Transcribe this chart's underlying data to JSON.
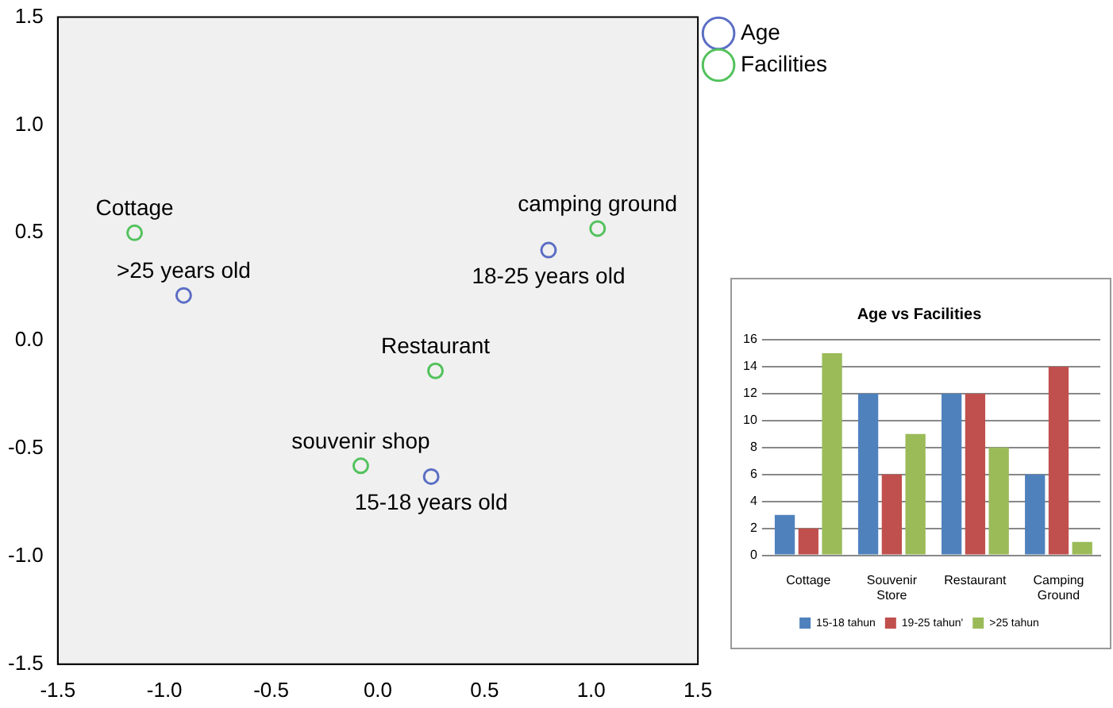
{
  "chart_data": [
    {
      "type": "scatter",
      "xlim": [
        -1.5,
        1.5
      ],
      "ylim": [
        -1.5,
        1.5
      ],
      "xticks": [
        -1.5,
        {
          "value": -1,
          "label": "-1.0"
        },
        -0.5,
        {
          "value": 0,
          "label": "0.0"
        },
        0.5,
        {
          "value": 1,
          "label": "1.0"
        },
        1.5
      ],
      "yticks": [
        -1.5,
        {
          "value": -1,
          "label": "-1.0"
        },
        -0.5,
        {
          "value": 0,
          "label": "0.0"
        },
        0.5,
        {
          "value": 1,
          "label": "1.0"
        },
        1.5
      ],
      "series": [
        {
          "name": "Age",
          "color": "#5b6ec4",
          "x": [
            -0.91,
            0.8,
            0.25
          ],
          "values": [
            0.21,
            0.42,
            -0.63
          ]
        },
        {
          "name": "Facilities",
          "color": "#52c25c",
          "x": [
            -1.14,
            1.03,
            0.27,
            -0.08
          ],
          "values": [
            0.5,
            0.52,
            -0.14,
            -0.58
          ]
        }
      ],
      "annotations": [
        {
          "text": "Cottage",
          "x": -1.14,
          "y": 0.5
        },
        {
          "text": "camping ground",
          "x": 1.03,
          "y": 0.52
        },
        {
          "text": "Restaurant",
          "x": 0.27,
          "y": -0.14
        },
        {
          "text": "souvenir shop",
          "x": -0.08,
          "y": -0.58
        },
        {
          "text": ">25 years old",
          "x": -0.91,
          "y": 0.21
        },
        {
          "text": "18-25 years old",
          "x": 0.8,
          "y": 0.42
        },
        {
          "text": "15-18 years old",
          "x": 0.25,
          "y": -0.63
        }
      ],
      "marker": "circle",
      "grid": false,
      "legend": "top right"
    },
    {
      "type": "bar",
      "title": "Age vs Facilities",
      "categories": [
        "Cottage",
        "Souvenir Store",
        "Restaurant",
        "Camping Ground"
      ],
      "series": [
        {
          "name": "15-18 tahun",
          "color": "#4f81bd",
          "values": [
            3,
            12,
            12,
            6
          ]
        },
        {
          "name": "19-25 tahun'",
          "color": "#c0504d",
          "values": [
            2,
            6,
            12,
            14
          ]
        },
        {
          "name": ">25 tahun",
          "color": "#9bbb59",
          "values": [
            15,
            9,
            8,
            1
          ]
        }
      ],
      "ylim": [
        0,
        16
      ],
      "yticks": [
        0,
        2,
        4,
        6,
        8,
        10,
        12,
        14,
        16
      ],
      "grid": "y",
      "legend": "bottom"
    }
  ]
}
